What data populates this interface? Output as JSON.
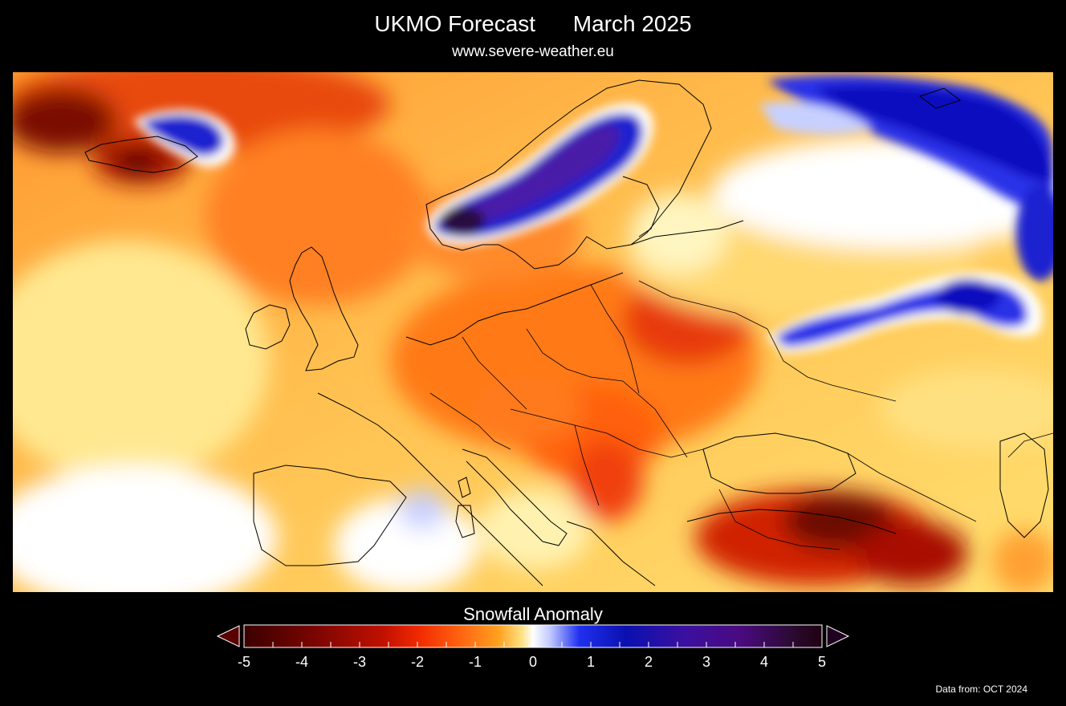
{
  "header": {
    "title": "UKMO Forecast      March 2025",
    "subtitle": "www.severe-weather.eu"
  },
  "map": {
    "variable": "Snowfall Anomaly",
    "region": "Europe",
    "colors": {
      "strong_deficit": "#3a0000",
      "deficit": "#e03000",
      "slight_deficit": "#ffa020",
      "neutral": "#ffffff",
      "surplus": "#1020e0",
      "strong_surplus": "#3a1a7a"
    }
  },
  "legend": {
    "title": "Snowfall Anomaly",
    "ticks": [
      "-5",
      "-4",
      "-3",
      "-2",
      "-1",
      "0",
      "1",
      "2",
      "3",
      "4",
      "5"
    ],
    "range": [
      -5,
      5
    ]
  },
  "footer": {
    "source": "Data from: OCT 2024"
  }
}
